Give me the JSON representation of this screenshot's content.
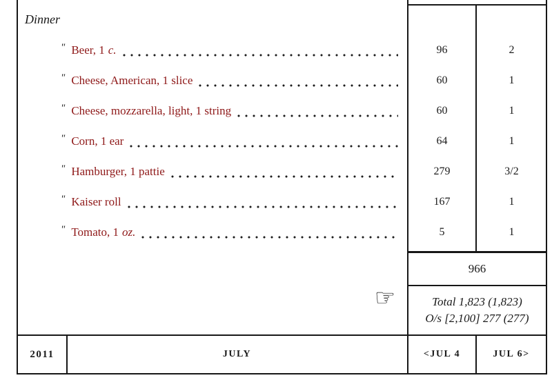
{
  "accent_color": "#8e1818",
  "meal_section": {
    "title": "Dinner"
  },
  "items": [
    {
      "ditto": "\"",
      "name": "Beer, 1",
      "unit": "c.",
      "calories": "96",
      "servings": "2"
    },
    {
      "ditto": "\"",
      "name": "Cheese, American, 1 slice",
      "unit": "",
      "calories": "60",
      "servings": "1"
    },
    {
      "ditto": "\"",
      "name": "Cheese, mozzarella, light, 1 string",
      "unit": "",
      "calories": "60",
      "servings": "1"
    },
    {
      "ditto": "\"",
      "name": "Corn, 1 ear",
      "unit": "",
      "calories": "64",
      "servings": "1"
    },
    {
      "ditto": "\"",
      "name": "Hamburger, 1 pattie",
      "unit": "",
      "calories": "279",
      "servings": "3/2"
    },
    {
      "ditto": "\"",
      "name": "Kaiser roll",
      "unit": "",
      "calories": "167",
      "servings": "1"
    },
    {
      "ditto": "\"",
      "name": "Tomato, 1",
      "unit": "oz.",
      "calories": "5",
      "servings": "1"
    }
  ],
  "summary": {
    "meal_subtotal": "966",
    "total_line": "Total 1,823 (1,823)",
    "overshoot_line": "O/s [2,100] 277 (277)",
    "hand_icon": "☞"
  },
  "footer": {
    "year": "2011",
    "month": "JULY",
    "prev_day": "<JUL 4",
    "next_day": "JUL 6>"
  }
}
